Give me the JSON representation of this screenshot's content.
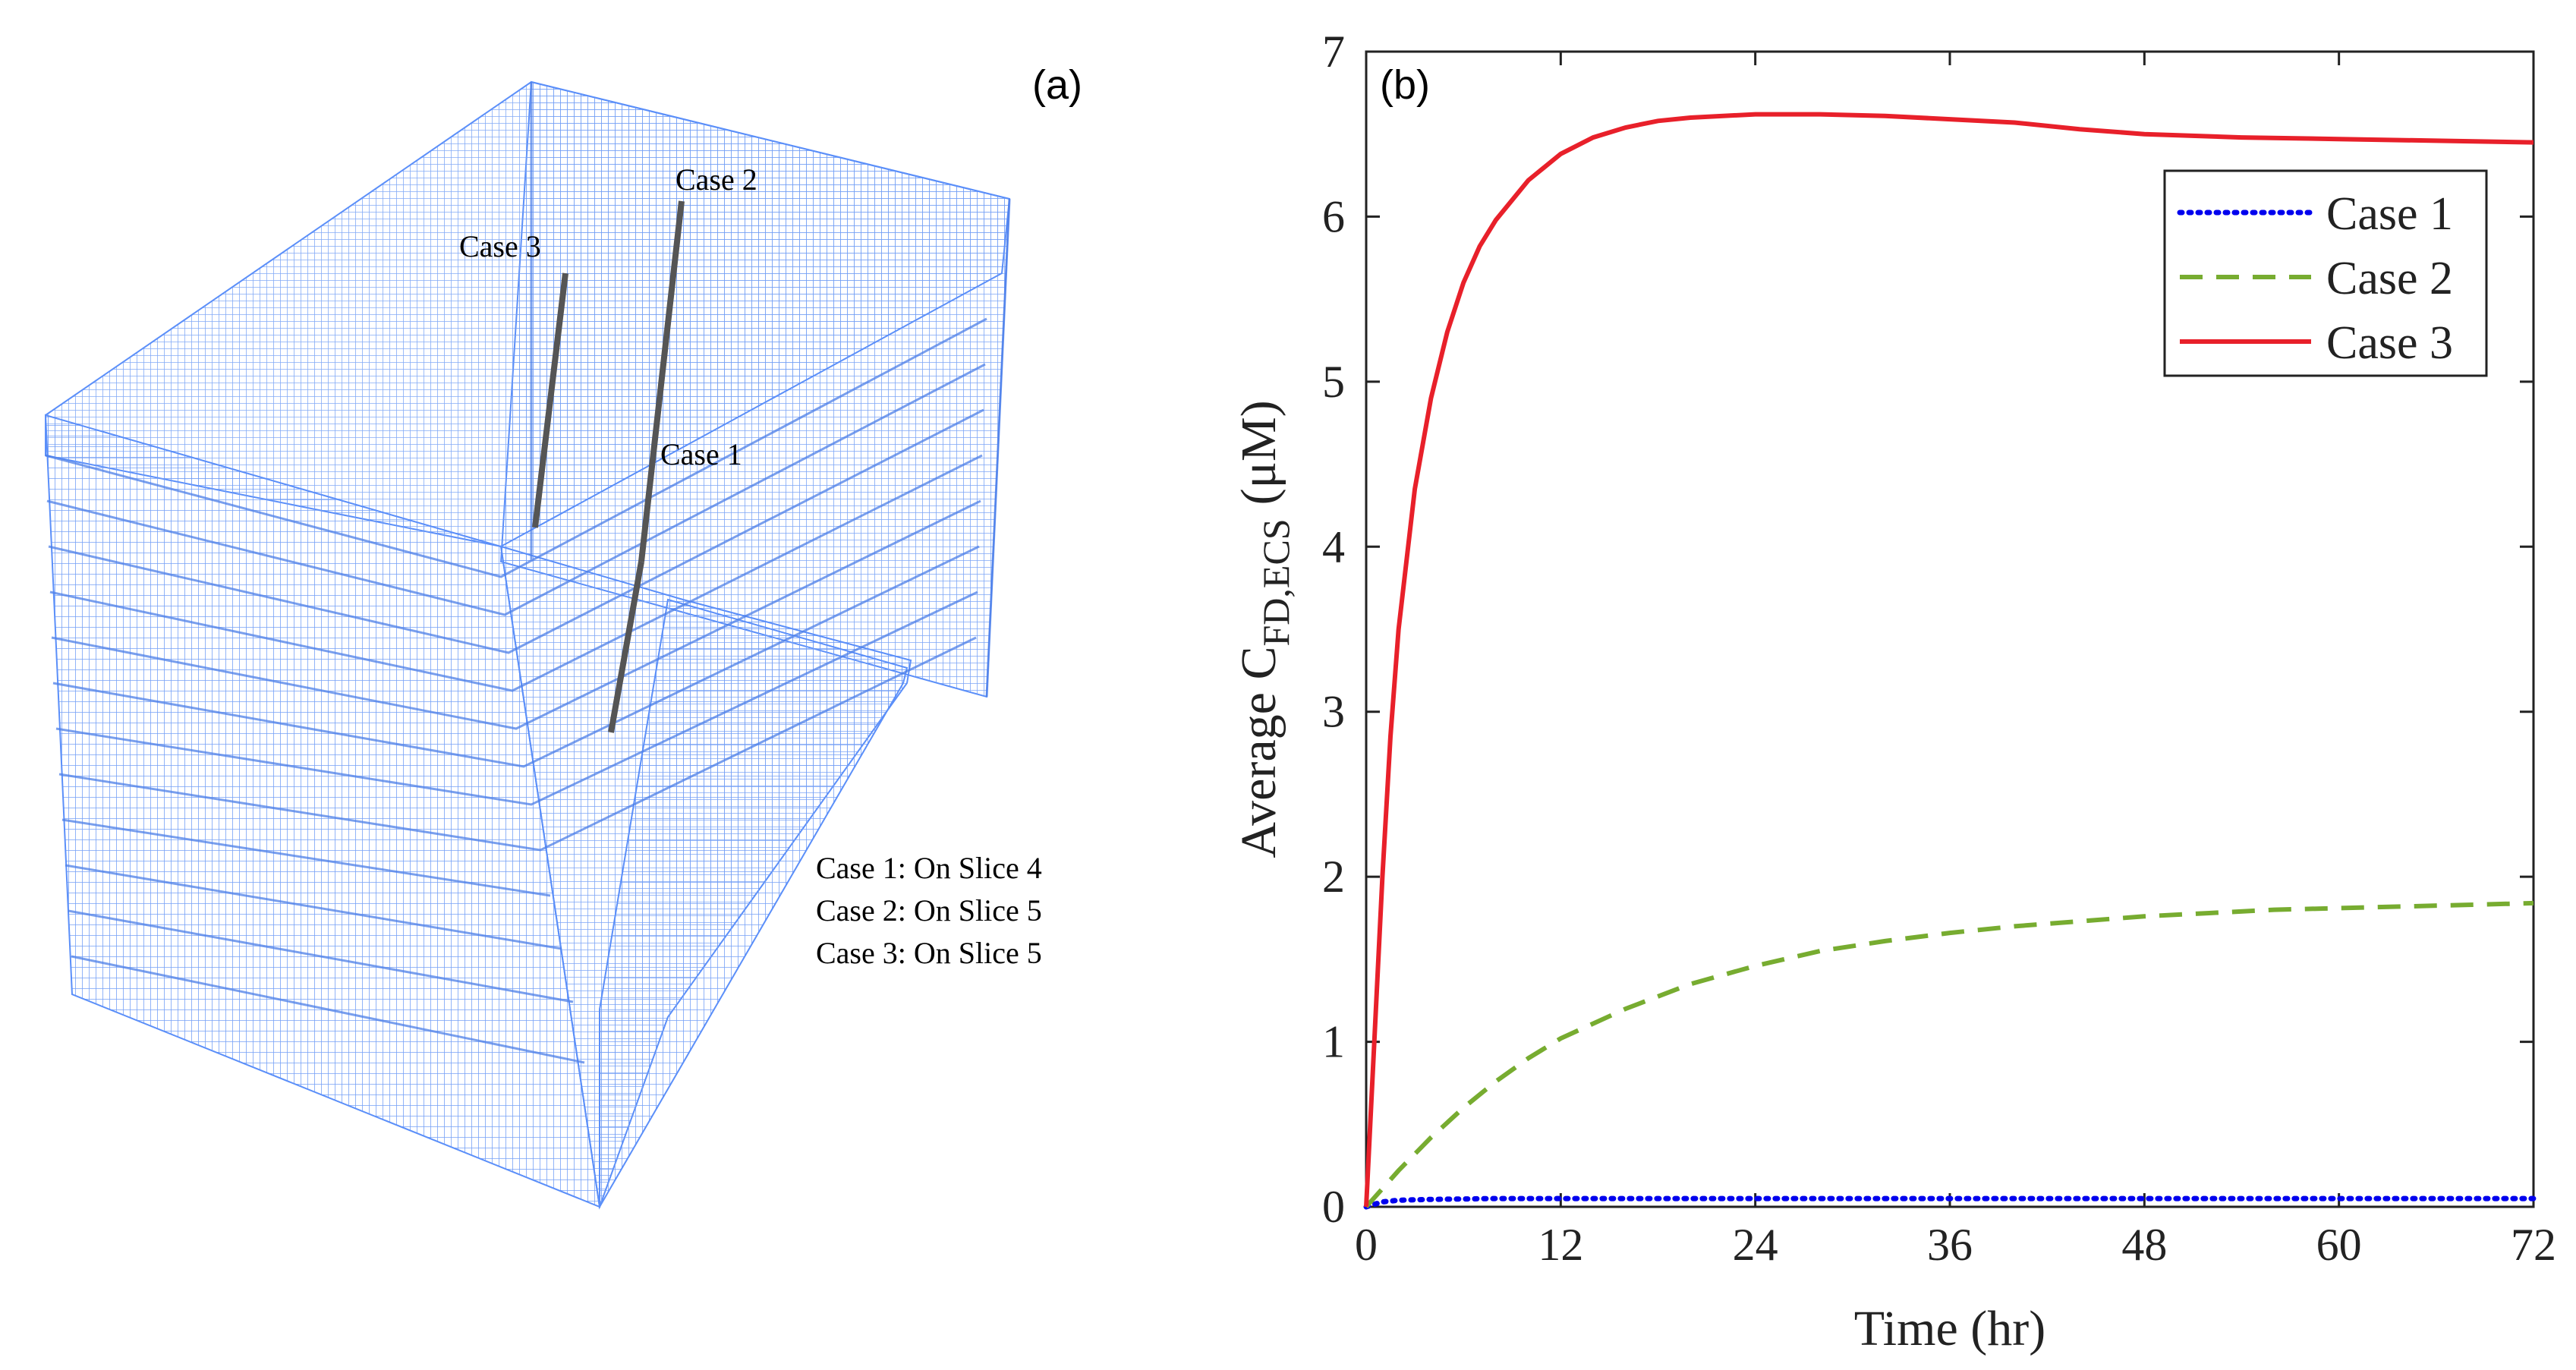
{
  "panel_a": {
    "label": "(a)",
    "mesh_color": "#5b8ff9",
    "needle_labels": [
      "Case 1",
      "Case 2",
      "Case 3"
    ],
    "legend_lines": [
      "Case 1: On Slice 4",
      "Case 2: On Slice 5",
      "Case 3: On Slice 5"
    ]
  },
  "panel_b": {
    "label": "(b)"
  },
  "chart_data": {
    "type": "line",
    "title": "",
    "xlabel": "Time (hr)",
    "ylabel_prefix": "Average C",
    "ylabel_subscript": "FD,ECS",
    "ylabel_unit": "(μM)",
    "xlim": [
      0,
      72
    ],
    "ylim": [
      0,
      7
    ],
    "xticks": [
      0,
      12,
      24,
      36,
      48,
      60,
      72
    ],
    "yticks": [
      0,
      1,
      2,
      3,
      4,
      5,
      6,
      7
    ],
    "grid": false,
    "legend_position": "top-right",
    "series": [
      {
        "name": "Case 1",
        "color": "#0000ee",
        "style": "dotted",
        "x": [
          0,
          1,
          2,
          4,
          8,
          12,
          24,
          36,
          48,
          60,
          72
        ],
        "y": [
          0,
          0.03,
          0.04,
          0.045,
          0.05,
          0.05,
          0.05,
          0.05,
          0.05,
          0.05,
          0.05
        ]
      },
      {
        "name": "Case 2",
        "color": "#77ac30",
        "style": "dashed",
        "x": [
          0,
          2,
          4,
          6,
          8,
          10,
          12,
          16,
          20,
          24,
          28,
          32,
          36,
          40,
          44,
          48,
          52,
          56,
          60,
          64,
          68,
          72
        ],
        "y": [
          0,
          0.22,
          0.42,
          0.6,
          0.76,
          0.9,
          1.02,
          1.2,
          1.35,
          1.46,
          1.55,
          1.61,
          1.66,
          1.7,
          1.73,
          1.76,
          1.78,
          1.8,
          1.81,
          1.82,
          1.83,
          1.84
        ]
      },
      {
        "name": "Case 3",
        "color": "#e8202a",
        "style": "solid",
        "x": [
          0,
          0.5,
          1,
          1.5,
          2,
          3,
          4,
          5,
          6,
          7,
          8,
          10,
          12,
          14,
          16,
          18,
          20,
          24,
          28,
          32,
          36,
          40,
          44,
          48,
          54,
          60,
          66,
          72
        ],
        "y": [
          0,
          1.0,
          2.0,
          2.85,
          3.5,
          4.35,
          4.9,
          5.3,
          5.6,
          5.82,
          5.98,
          6.22,
          6.38,
          6.48,
          6.54,
          6.58,
          6.6,
          6.62,
          6.62,
          6.61,
          6.59,
          6.57,
          6.53,
          6.5,
          6.48,
          6.47,
          6.46,
          6.45
        ]
      }
    ]
  }
}
